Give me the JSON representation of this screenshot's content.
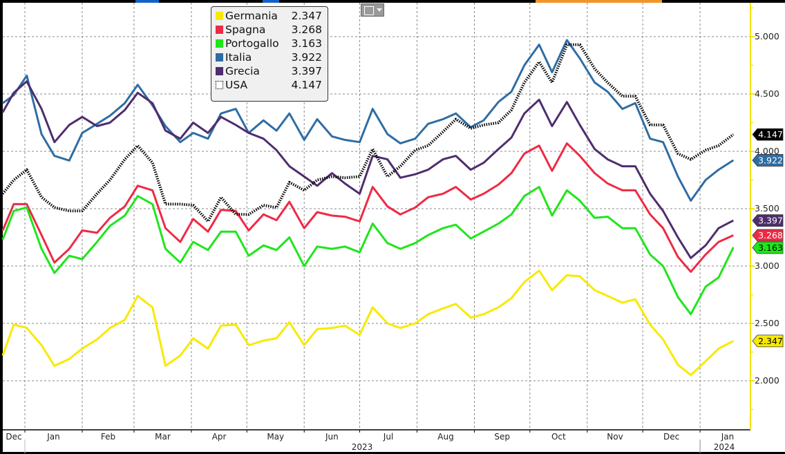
{
  "chart_data": {
    "type": "line",
    "title": "",
    "xlabel": "",
    "ylabel": "",
    "x_unit": "days since 2023-01-01",
    "xlim": [
      -12,
      392
    ],
    "ylim": [
      1.58,
      5.3
    ],
    "grid": true,
    "legend_position": "top-left",
    "y_axis_side": "right",
    "y_ticks": [
      {
        "value": 2.0,
        "label": "2.000"
      },
      {
        "value": 2.5,
        "label": "2.500"
      },
      {
        "value": 3.0,
        "label": "3.000"
      },
      {
        "value": 3.5,
        "label": "3.500"
      },
      {
        "value": 4.0,
        "label": "4.000"
      },
      {
        "value": 4.5,
        "label": "4.500"
      },
      {
        "value": 5.0,
        "label": "5.000"
      }
    ],
    "x_months": [
      {
        "label": "Dec",
        "start": -31
      },
      {
        "label": "Jan",
        "start": 0
      },
      {
        "label": "Feb",
        "start": 31
      },
      {
        "label": "Mar",
        "start": 59
      },
      {
        "label": "Apr",
        "start": 90
      },
      {
        "label": "May",
        "start": 120
      },
      {
        "label": "Jun",
        "start": 151
      },
      {
        "label": "Jul",
        "start": 181
      },
      {
        "label": "Aug",
        "start": 212
      },
      {
        "label": "Sep",
        "start": 243
      },
      {
        "label": "Oct",
        "start": 273
      },
      {
        "label": "Nov",
        "start": 304
      },
      {
        "label": "Dec",
        "start": 334
      },
      {
        "label": "Jan",
        "start": 365
      }
    ],
    "x_years": [
      {
        "label": "2023",
        "center": 182
      },
      {
        "label": "2024",
        "center": 380
      }
    ],
    "x": [
      -12,
      -6,
      1,
      9,
      16,
      24,
      31,
      39,
      46,
      54,
      61,
      69,
      76,
      84,
      91,
      99,
      106,
      114,
      121,
      129,
      136,
      143,
      151,
      158,
      166,
      173,
      181,
      188,
      196,
      203,
      211,
      218,
      226,
      233,
      241,
      248,
      256,
      263,
      270,
      278,
      285,
      293,
      300,
      308,
      315,
      323,
      330,
      338,
      345,
      353,
      360,
      368,
      375,
      383
    ],
    "series": [
      {
        "name": "Germania",
        "last": "2.347",
        "color": "#f7ea00",
        "tag_text_color": "#000000",
        "style": "solid",
        "values": [
          2.22,
          2.49,
          2.46,
          2.31,
          2.13,
          2.19,
          2.28,
          2.36,
          2.46,
          2.53,
          2.74,
          2.64,
          2.13,
          2.22,
          2.37,
          2.28,
          2.48,
          2.49,
          2.31,
          2.35,
          2.37,
          2.51,
          2.31,
          2.45,
          2.46,
          2.48,
          2.4,
          2.64,
          2.5,
          2.46,
          2.5,
          2.58,
          2.63,
          2.67,
          2.55,
          2.58,
          2.64,
          2.72,
          2.86,
          2.96,
          2.79,
          2.92,
          2.91,
          2.79,
          2.74,
          2.68,
          2.71,
          2.49,
          2.36,
          2.14,
          2.05,
          2.17,
          2.28,
          2.347
        ]
      },
      {
        "name": "Spagna",
        "last": "3.268",
        "color": "#ee2a45",
        "tag_text_color": "#ffffff",
        "style": "solid",
        "values": [
          3.31,
          3.54,
          3.54,
          3.27,
          3.03,
          3.15,
          3.31,
          3.29,
          3.42,
          3.52,
          3.7,
          3.66,
          3.33,
          3.21,
          3.41,
          3.3,
          3.49,
          3.48,
          3.31,
          3.45,
          3.4,
          3.56,
          3.33,
          3.47,
          3.44,
          3.43,
          3.39,
          3.69,
          3.52,
          3.45,
          3.51,
          3.6,
          3.63,
          3.69,
          3.58,
          3.63,
          3.71,
          3.81,
          3.98,
          4.05,
          3.83,
          4.07,
          3.96,
          3.81,
          3.72,
          3.66,
          3.66,
          3.45,
          3.33,
          3.08,
          2.95,
          3.1,
          3.21,
          3.268
        ]
      },
      {
        "name": "Portogallo",
        "last": "3.163",
        "color": "#1ee61a",
        "tag_text_color": "#000000",
        "style": "solid",
        "values": [
          3.23,
          3.48,
          3.51,
          3.15,
          2.94,
          3.09,
          3.06,
          3.21,
          3.35,
          3.44,
          3.61,
          3.54,
          3.15,
          3.03,
          3.21,
          3.14,
          3.3,
          3.3,
          3.09,
          3.18,
          3.14,
          3.25,
          3.0,
          3.17,
          3.15,
          3.17,
          3.12,
          3.37,
          3.2,
          3.15,
          3.2,
          3.27,
          3.33,
          3.36,
          3.24,
          3.3,
          3.37,
          3.45,
          3.61,
          3.69,
          3.44,
          3.66,
          3.57,
          3.42,
          3.43,
          3.33,
          3.33,
          3.1,
          3.0,
          2.73,
          2.58,
          2.82,
          2.9,
          3.163
        ]
      },
      {
        "name": "Italia",
        "last": "3.922",
        "color": "#2e6da4",
        "tag_text_color": "#ffffff",
        "style": "solid",
        "values": [
          4.42,
          4.49,
          4.66,
          4.15,
          3.96,
          3.92,
          4.16,
          4.24,
          4.31,
          4.42,
          4.58,
          4.4,
          4.22,
          4.08,
          4.16,
          4.11,
          4.33,
          4.37,
          4.16,
          4.27,
          4.18,
          4.33,
          4.1,
          4.28,
          4.13,
          4.1,
          4.08,
          4.37,
          4.15,
          4.07,
          4.11,
          4.24,
          4.28,
          4.33,
          4.21,
          4.27,
          4.43,
          4.52,
          4.75,
          4.93,
          4.69,
          4.97,
          4.81,
          4.6,
          4.52,
          4.37,
          4.42,
          4.11,
          4.08,
          3.78,
          3.57,
          3.75,
          3.84,
          3.922
        ]
      },
      {
        "name": "Grecia",
        "last": "3.397",
        "color": "#4e2d6e",
        "tag_text_color": "#ffffff",
        "style": "solid",
        "values": [
          4.34,
          4.51,
          4.61,
          4.37,
          4.08,
          4.23,
          4.3,
          4.22,
          4.25,
          4.36,
          4.51,
          4.42,
          4.18,
          4.11,
          4.25,
          4.16,
          4.3,
          4.23,
          4.16,
          4.11,
          4.01,
          3.87,
          3.78,
          3.7,
          3.81,
          3.72,
          3.63,
          3.96,
          3.93,
          3.77,
          3.8,
          3.84,
          3.93,
          3.96,
          3.84,
          3.9,
          4.02,
          4.12,
          4.33,
          4.45,
          4.22,
          4.43,
          4.23,
          4.02,
          3.93,
          3.87,
          3.87,
          3.63,
          3.48,
          3.25,
          3.07,
          3.18,
          3.33,
          3.397
        ]
      },
      {
        "name": "USA",
        "last": "4.147",
        "color": "#000000",
        "tag_text_color": "#ffffff",
        "style": "dotted",
        "values": [
          3.63,
          3.75,
          3.84,
          3.6,
          3.51,
          3.48,
          3.48,
          3.63,
          3.75,
          3.93,
          4.05,
          3.9,
          3.54,
          3.54,
          3.53,
          3.39,
          3.6,
          3.45,
          3.45,
          3.53,
          3.51,
          3.73,
          3.66,
          3.75,
          3.78,
          3.77,
          3.78,
          4.02,
          3.78,
          3.87,
          4.01,
          4.05,
          4.17,
          4.28,
          4.2,
          4.23,
          4.25,
          4.36,
          4.6,
          4.78,
          4.6,
          4.93,
          4.93,
          4.72,
          4.6,
          4.48,
          4.48,
          4.23,
          4.23,
          3.98,
          3.93,
          4.01,
          4.05,
          4.147
        ]
      }
    ]
  }
}
